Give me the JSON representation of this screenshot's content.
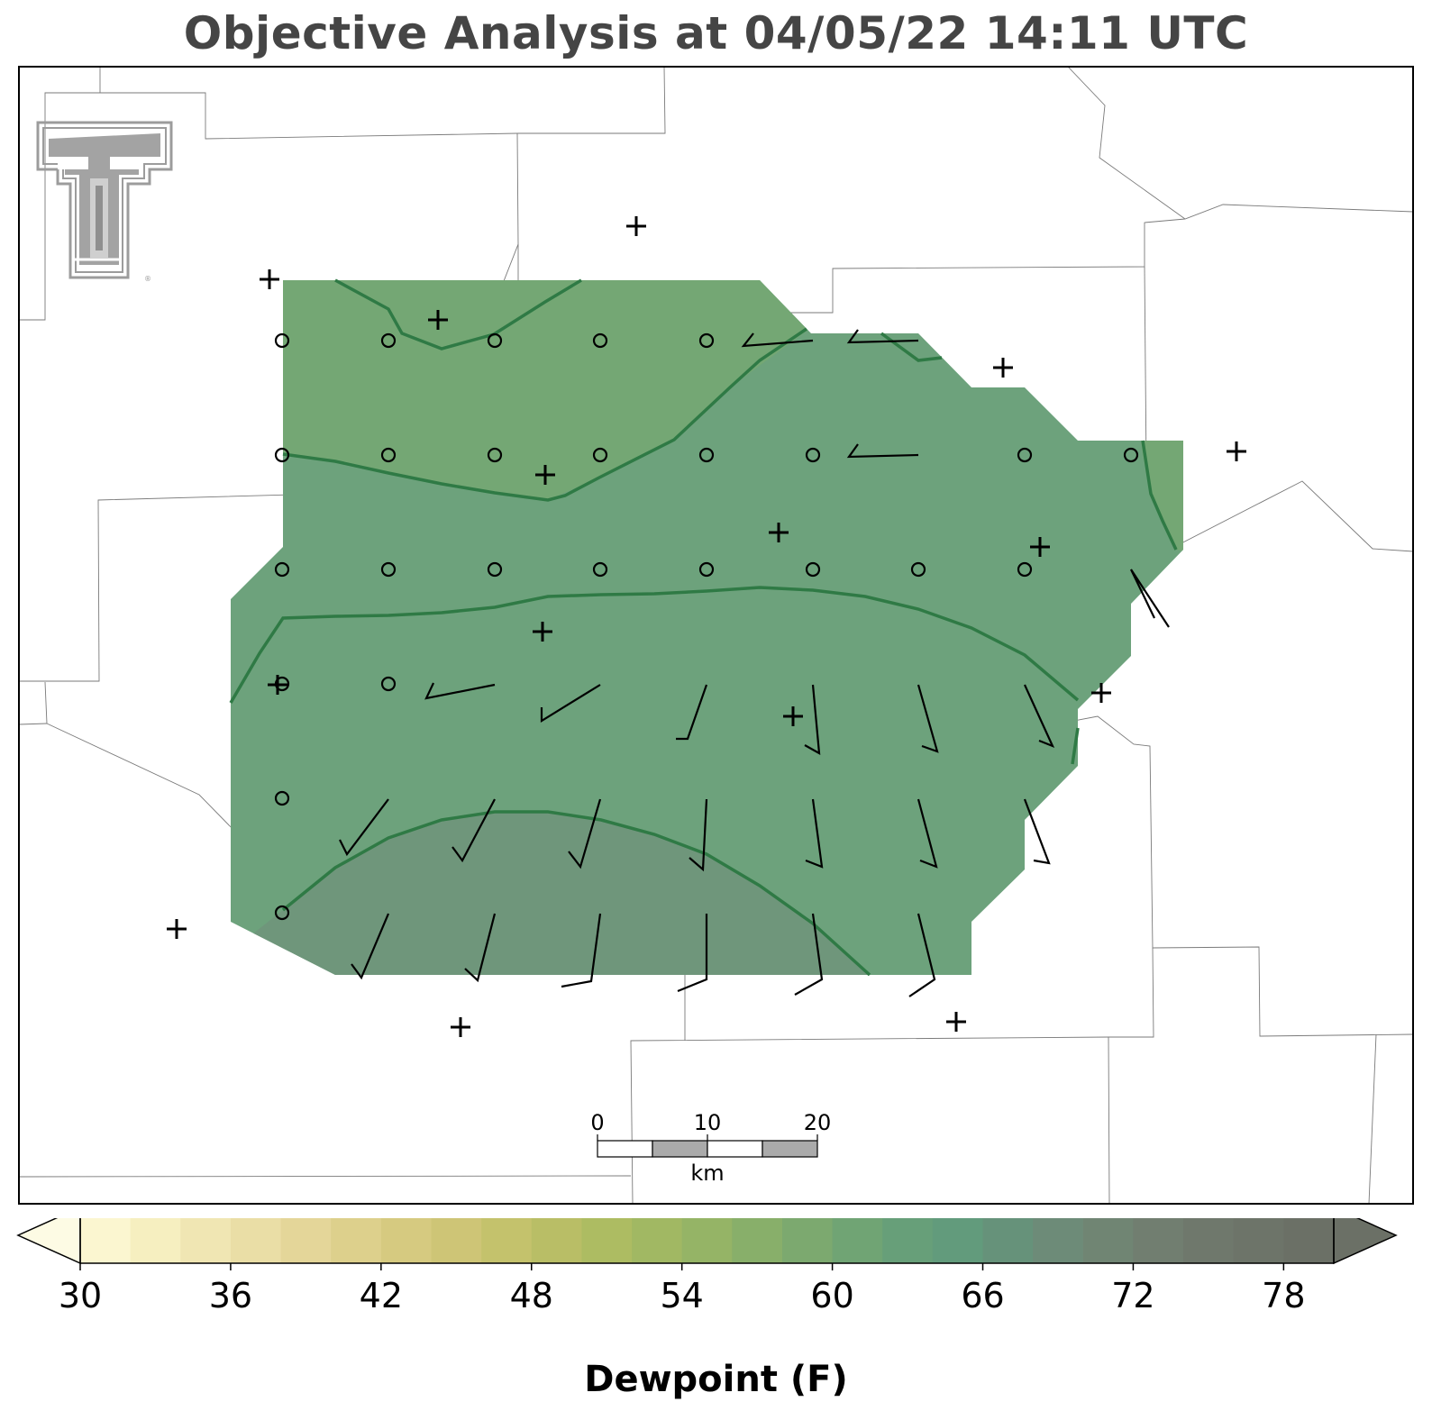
{
  "title": "Objective Analysis at 04/05/22 14:11 UTC",
  "colorbar": {
    "label": "Dewpoint (F)",
    "ticks": [
      "30",
      "36",
      "42",
      "48",
      "54",
      "60",
      "66",
      "72",
      "78"
    ],
    "min": 30,
    "max": 80,
    "step": 2,
    "colors": [
      "#fbf6d0",
      "#f6efc0",
      "#f0e6b3",
      "#eadea6",
      "#e4d699",
      "#ddd08c",
      "#d6ca80",
      "#cec576",
      "#c4c26c",
      "#b9be66",
      "#adbc62",
      "#a1b863",
      "#95b466",
      "#88af6a",
      "#7ca96f",
      "#70a474",
      "#679f79",
      "#629b7c",
      "#66927a",
      "#6d8b78",
      "#708573",
      "#717e70",
      "#6f786c",
      "#6d7469",
      "#6b7066"
    ]
  },
  "scale_bar": {
    "ticks": [
      "0",
      "10",
      "20"
    ],
    "unit": "km"
  },
  "logo": {
    "text": "TT"
  },
  "map_data": {
    "crosses": [
      [
        706,
        251
      ],
      [
        299,
        310
      ],
      [
        486,
        355
      ],
      [
        1113,
        408
      ],
      [
        1372,
        501
      ],
      [
        605,
        527
      ],
      [
        864,
        591
      ],
      [
        1154,
        607
      ],
      [
        602,
        701
      ],
      [
        308,
        760
      ],
      [
        880,
        795
      ],
      [
        1222,
        769
      ],
      [
        196,
        1031
      ],
      [
        511,
        1140
      ],
      [
        1061,
        1134
      ]
    ],
    "circles": [
      [
        313,
        378
      ],
      [
        431,
        378
      ],
      [
        549,
        378
      ],
      [
        666,
        378
      ],
      [
        784,
        378
      ],
      [
        313,
        505
      ],
      [
        431,
        505
      ],
      [
        549,
        505
      ],
      [
        666,
        505
      ],
      [
        784,
        505
      ],
      [
        902,
        505
      ],
      [
        1137,
        505
      ],
      [
        1255,
        505
      ],
      [
        313,
        632
      ],
      [
        431,
        632
      ],
      [
        549,
        632
      ],
      [
        666,
        632
      ],
      [
        784,
        632
      ],
      [
        902,
        632
      ],
      [
        1019,
        632
      ],
      [
        1137,
        632
      ],
      [
        313,
        759
      ],
      [
        431,
        759
      ],
      [
        313,
        886
      ],
      [
        313,
        1013
      ]
    ],
    "barbs": [
      [
        [
          825,
          384
        ],
        [
          902,
          378
        ],
        [
          836,
          370
        ]
      ],
      [
        [
          942,
          380
        ],
        [
          1019,
          378
        ],
        [
          952,
          366
        ]
      ],
      [
        [
          942,
          507
        ],
        [
          1019,
          505
        ],
        [
          952,
          493
        ]
      ],
      [
        [
          1255,
          632
        ],
        [
          1297,
          696
        ],
        [
          1281,
          686
        ]
      ],
      [
        [
          473,
          775
        ],
        [
          549,
          760
        ],
        [
          481,
          758
        ]
      ],
      [
        [
          601,
          800
        ],
        [
          666,
          760
        ],
        [
          601,
          785
        ]
      ],
      [
        [
          763,
          820
        ],
        [
          784,
          760
        ],
        [
          750,
          820
        ]
      ],
      [
        [
          909,
          836
        ],
        [
          902,
          760
        ],
        [
          893,
          827
        ]
      ],
      [
        [
          1040,
          834
        ],
        [
          1019,
          760
        ],
        [
          1023,
          828
        ]
      ],
      [
        [
          1168,
          828
        ],
        [
          1137,
          760
        ],
        [
          1153,
          822
        ]
      ],
      [
        [
          385,
          948
        ],
        [
          431,
          887
        ],
        [
          377,
          932
        ]
      ],
      [
        [
          513,
          955
        ],
        [
          549,
          887
        ],
        [
          502,
          940
        ]
      ],
      [
        [
          644,
          962
        ],
        [
          666,
          887
        ],
        [
          631,
          945
        ]
      ],
      [
        [
          780,
          965
        ],
        [
          784,
          887
        ],
        [
          765,
          952
        ]
      ],
      [
        [
          912,
          962
        ],
        [
          902,
          887
        ],
        [
          894,
          955
        ]
      ],
      [
        [
          1039,
          962
        ],
        [
          1019,
          887
        ],
        [
          1021,
          955
        ]
      ],
      [
        [
          1164,
          958
        ],
        [
          1137,
          887
        ],
        [
          1147,
          955
        ]
      ],
      [
        [
          401,
          1085
        ],
        [
          431,
          1014
        ],
        [
          390,
          1070
        ]
      ],
      [
        [
          530,
          1088
        ],
        [
          549,
          1014
        ],
        [
          516,
          1075
        ]
      ],
      [
        [
          656,
          1089
        ],
        [
          666,
          1014
        ],
        [
          623,
          1095
        ]
      ],
      [
        [
          784,
          1087
        ],
        [
          784,
          1014
        ],
        [
          752,
          1100
        ]
      ],
      [
        [
          912,
          1087
        ],
        [
          902,
          1014
        ],
        [
          882,
          1104
        ]
      ],
      [
        [
          1037,
          1087
        ],
        [
          1019,
          1014
        ],
        [
          1009,
          1106
        ]
      ]
    ]
  }
}
